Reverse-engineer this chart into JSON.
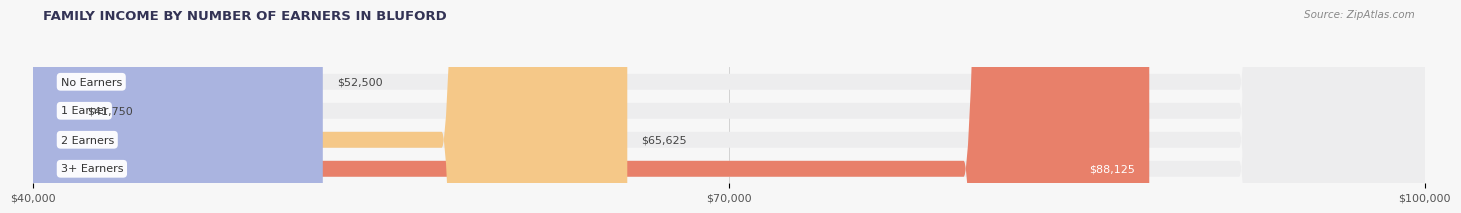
{
  "title": "FAMILY INCOME BY NUMBER OF EARNERS IN BLUFORD",
  "source": "Source: ZipAtlas.com",
  "categories": [
    "No Earners",
    "1 Earner",
    "2 Earners",
    "3+ Earners"
  ],
  "values": [
    52500,
    41750,
    65625,
    88125
  ],
  "colors": [
    "#aab4e0",
    "#f4a0b5",
    "#f5c888",
    "#e8806a"
  ],
  "bar_bg_color": "#e2e2e6",
  "xmin": 40000,
  "xmax": 100000,
  "xticks": [
    40000,
    70000,
    100000
  ],
  "xtick_labels": [
    "$40,000",
    "$70,000",
    "$100,000"
  ],
  "value_labels": [
    "$52,500",
    "$41,750",
    "$65,625",
    "$88,125"
  ],
  "value_label_colors": [
    "#444444",
    "#444444",
    "#444444",
    "#ffffff"
  ],
  "fig_bg_color": "#f7f7f7",
  "bar_height": 0.55,
  "row_bg_color": "#ededee"
}
